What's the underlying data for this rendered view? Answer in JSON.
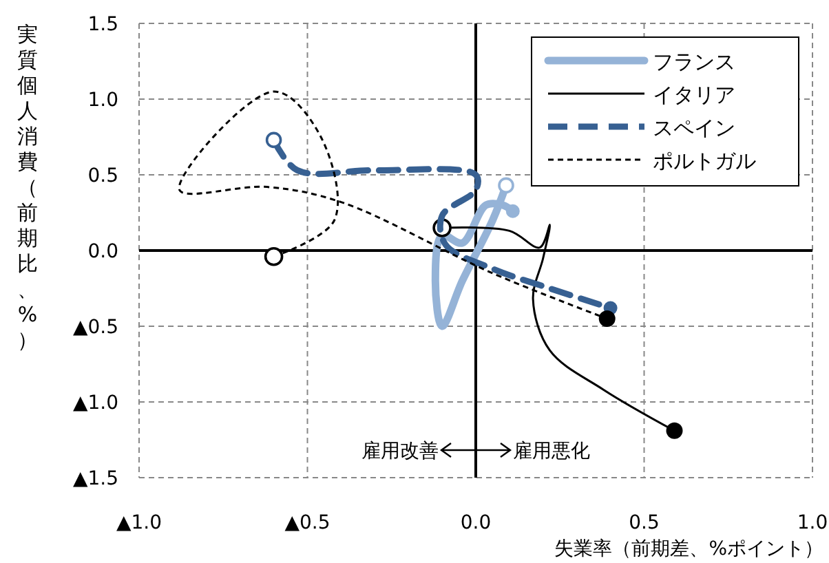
{
  "chart_data": {
    "type": "line",
    "xlabel": "失業率（前期差、%ポイント）",
    "ylabel": "実質個人消費（前期比、%）",
    "xlim": [
      -1.0,
      1.0
    ],
    "ylim": [
      -1.5,
      1.5
    ],
    "xticks": [
      {
        "value": -1.0,
        "label": "▲1.0"
      },
      {
        "value": -0.5,
        "label": "▲0.5"
      },
      {
        "value": 0,
        "label": "0.0"
      },
      {
        "value": 0.5,
        "label": "0.5"
      },
      {
        "value": 1.0,
        "label": "1.0"
      }
    ],
    "yticks": [
      {
        "value": 1.5,
        "label": "1.5"
      },
      {
        "value": 1.0,
        "label": "1.0"
      },
      {
        "value": 0.5,
        "label": "0.5"
      },
      {
        "value": 0,
        "label": "0.0"
      },
      {
        "value": -0.5,
        "label": "▲0.5"
      },
      {
        "value": -1.0,
        "label": "▲1.0"
      },
      {
        "value": -1.5,
        "label": "▲1.5"
      }
    ],
    "grid": true,
    "legend": "top right",
    "annotations": [
      "雇用改善",
      "雇用悪化"
    ],
    "series": [
      {
        "name": "フランス",
        "color": "#95b3d7",
        "line_style": "solid",
        "x": [
          0.09,
          0.05,
          -0.04,
          -0.1,
          -0.12,
          -0.1,
          -0.04,
          0.03,
          0.08,
          0.11
        ],
        "values": [
          0.43,
          0.2,
          -0.2,
          -0.5,
          -0.2,
          0.1,
          0.05,
          0.3,
          0.3,
          0.26
        ]
      },
      {
        "name": "イタリア",
        "color": "#000000",
        "line_style": "solid",
        "x": [
          -0.1,
          0.1,
          0.19,
          0.22,
          0.2,
          0.17,
          0.22,
          0.38,
          0.59
        ],
        "values": [
          0.15,
          0.13,
          0.02,
          0.17,
          -0.05,
          -0.32,
          -0.66,
          -0.92,
          -1.19
        ]
      },
      {
        "name": "スペイン",
        "color": "#376092",
        "line_style": "dashed",
        "x": [
          -0.6,
          -0.53,
          -0.3,
          0,
          0,
          -0.1,
          -0.09,
          0.05,
          0.22,
          0.4
        ],
        "values": [
          0.73,
          0.53,
          0.53,
          0.5,
          0.4,
          0.23,
          0.04,
          -0.12,
          -0.25,
          -0.38
        ]
      },
      {
        "name": "ポルトガル",
        "color": "#000000",
        "line_style": "dotted",
        "x": [
          -0.6,
          -0.42,
          -0.46,
          -0.6,
          -0.88,
          -0.62,
          -0.4,
          0.05,
          0.39
        ],
        "values": [
          -0.04,
          0.2,
          0.75,
          1.05,
          0.4,
          0.42,
          0.32,
          -0.15,
          -0.45
        ]
      }
    ]
  }
}
